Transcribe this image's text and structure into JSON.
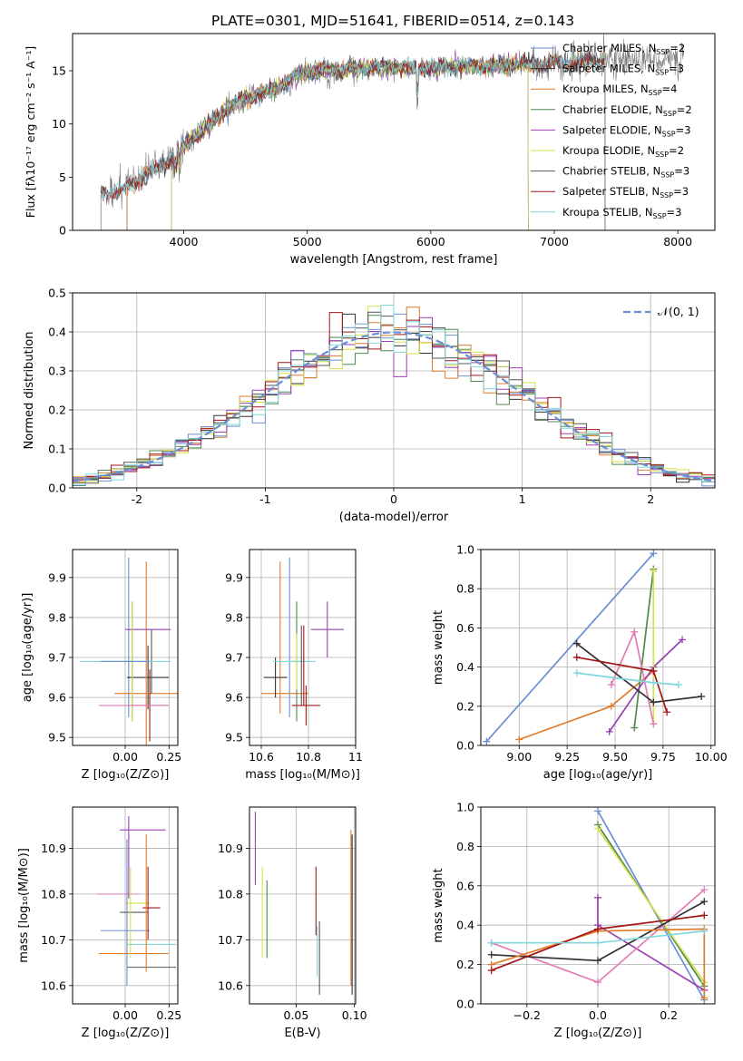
{
  "title": "PLATE=0301, MJD=51641, FIBERID=0514, z=0.143",
  "colors": {
    "Chabrier MILES": "#6a8fd6",
    "Salpeter MILES": "#333333",
    "Kroupa MILES": "#e07b2a",
    "Chabrier ELODIE": "#4f8a4f",
    "Salpeter ELODIE": "#9b3fb5",
    "Kroupa ELODIE": "#d6e04a",
    "Chabrier STELIB": "#555555",
    "Salpeter STELIB": "#a01818",
    "Kroupa STELIB": "#7fd6dc",
    "pink": "#e37db5",
    "gauss": "#6a8fd6"
  },
  "chart_data": [
    {
      "type": "line",
      "title": "PLATE=0301, MJD=51641, FIBERID=0514, z=0.143",
      "xlabel": "wavelength [Angstrom, rest frame]",
      "ylabel": "Flux [fλ10⁻¹⁷ erg cm⁻² s⁻¹ A⁻¹]",
      "xlim": [
        3100,
        8300
      ],
      "ylim": [
        0,
        18.5
      ],
      "xticks": [
        4000,
        5000,
        6000,
        7000,
        8000
      ],
      "yticks": [
        0,
        5,
        10,
        15
      ],
      "grid": false,
      "legend": "top-right",
      "legend_entries": [
        {
          "name": "Chabrier MILES, N",
          "sub": "SSP",
          "tail": "=2",
          "color": "Chabrier MILES"
        },
        {
          "name": "Salpeter MILES, N",
          "sub": "SSP",
          "tail": "=3",
          "color": "Salpeter MILES"
        },
        {
          "name": "Kroupa MILES, N",
          "sub": "SSP",
          "tail": "=4",
          "color": "Kroupa MILES"
        },
        {
          "name": "Chabrier ELODIE, N",
          "sub": "SSP",
          "tail": "=2",
          "color": "Chabrier ELODIE"
        },
        {
          "name": "Salpeter ELODIE, N",
          "sub": "SSP",
          "tail": "=3",
          "color": "Salpeter ELODIE"
        },
        {
          "name": "Kroupa ELODIE, N",
          "sub": "SSP",
          "tail": "=2",
          "color": "Kroupa ELODIE"
        },
        {
          "name": "Chabrier STELIB, N",
          "sub": "SSP",
          "tail": "=3",
          "color": "Chabrier STELIB"
        },
        {
          "name": "Salpeter STELIB, N",
          "sub": "SSP",
          "tail": "=3",
          "color": "Salpeter STELIB"
        },
        {
          "name": "Kroupa STELIB, N",
          "sub": "SSP",
          "tail": "=3",
          "color": "Kroupa STELIB"
        }
      ],
      "spectrum_shape": {
        "x": [
          3330,
          3500,
          3600,
          3700,
          3800,
          3900,
          4000,
          4100,
          4200,
          4300,
          4400,
          4500,
          4600,
          4700,
          4800,
          4900,
          5000,
          5200,
          5400,
          5600,
          5800,
          6000,
          6200,
          6400,
          6600,
          6800,
          7000,
          7200,
          7400,
          7500
        ],
        "y": [
          3.6,
          3.7,
          4.6,
          5.2,
          6.0,
          6.9,
          7.9,
          8.9,
          9.9,
          10.9,
          11.9,
          12.4,
          12.8,
          13.1,
          13.6,
          14.5,
          14.9,
          15.1,
          15.2,
          15.3,
          15.3,
          15.3,
          15.4,
          15.4,
          15.5,
          15.6,
          15.7,
          15.8,
          16.0,
          16.1
        ]
      },
      "model_ranges": [
        {
          "model": "Chabrier MILES",
          "xmin": 3540,
          "xmax": 7410
        },
        {
          "model": "Salpeter MILES",
          "xmin": 3540,
          "xmax": 7410
        },
        {
          "model": "Kroupa MILES",
          "xmin": 3540,
          "xmax": 7410
        },
        {
          "model": "Chabrier ELODIE",
          "xmin": 3900,
          "xmax": 6790
        },
        {
          "model": "Salpeter ELODIE",
          "xmin": 3900,
          "xmax": 6790
        },
        {
          "model": "Kroupa ELODIE",
          "xmin": 3900,
          "xmax": 6790
        },
        {
          "model": "Chabrier STELIB",
          "xmin": 3330,
          "xmax": 7410
        },
        {
          "model": "Salpeter STELIB",
          "xmin": 3330,
          "xmax": 7410
        },
        {
          "model": "Kroupa STELIB",
          "xmin": 3330,
          "xmax": 7410
        }
      ],
      "data_range": [
        3330,
        8050
      ]
    },
    {
      "type": "line",
      "xlabel": "(data-model)/error",
      "ylabel": "Normed distribution",
      "xlim": [
        -2.5,
        2.5
      ],
      "ylim": [
        0,
        0.5
      ],
      "xticks": [
        -2,
        -1,
        0,
        1,
        2
      ],
      "yticks": [
        0.0,
        0.1,
        0.2,
        0.3,
        0.4,
        0.5
      ],
      "grid": true,
      "legend": "top-right",
      "legend_entry": "𝒩(0, 1)",
      "bin_width": 0.1
    },
    {
      "type": "scatter",
      "xlabel": "Z [log₁₀(Z/Z⊙)]",
      "ylabel": "age  [log₁₀(age/yr)]",
      "xlim": [
        -0.3,
        0.3
      ],
      "ylim": [
        9.48,
        9.97
      ],
      "xticks": [
        0.0,
        0.25
      ],
      "xticklabels": [
        "0.00",
        "0.25"
      ],
      "yticks": [
        9.5,
        9.6,
        9.7,
        9.8,
        9.9
      ],
      "grid": true
    },
    {
      "type": "scatter",
      "xlabel": "mass [log₁₀(M/M⊙)]",
      "xlim": [
        10.55,
        11.0
      ],
      "ylim": [
        9.48,
        9.97
      ],
      "xticks": [
        10.6,
        10.8,
        11.0
      ],
      "yticks": [
        9.5,
        9.6,
        9.7,
        9.8,
        9.9
      ],
      "grid": true
    },
    {
      "type": "line",
      "xlabel": "age  [log₁₀(age/yr)]",
      "ylabel": "mass weight",
      "xlim": [
        8.8,
        10.02
      ],
      "ylim": [
        0,
        1.0
      ],
      "xticks": [
        9.0,
        9.25,
        9.5,
        9.75,
        10.0
      ],
      "xticklabels": [
        "9.00",
        "9.25",
        "9.50",
        "9.75",
        "10.00"
      ],
      "yticks": [
        0.0,
        0.2,
        0.4,
        0.6,
        0.8,
        1.0
      ],
      "grid": true,
      "series": [
        {
          "color": "Chabrier MILES",
          "x": [
            8.83,
            9.7
          ],
          "y": [
            0.02,
            0.98
          ]
        },
        {
          "color": "Kroupa MILES",
          "x": [
            9.0,
            9.48,
            9.7
          ],
          "y": [
            0.03,
            0.2,
            0.38
          ]
        },
        {
          "color": "Chabrier ELODIE",
          "x": [
            9.6,
            9.7
          ],
          "y": [
            0.09,
            0.9
          ]
        },
        {
          "color": "Salpeter ELODIE",
          "x": [
            9.47,
            9.7,
            9.85
          ],
          "y": [
            0.07,
            0.4,
            0.54
          ]
        },
        {
          "color": "Kroupa ELODIE",
          "x": [
            9.7,
            9.7
          ],
          "y": [
            0.11,
            0.89
          ]
        },
        {
          "color": "pink",
          "x": [
            9.48,
            9.6,
            9.7
          ],
          "y": [
            0.31,
            0.58,
            0.11
          ]
        },
        {
          "color": "Salpeter MILES",
          "x": [
            9.3,
            9.7,
            9.95
          ],
          "y": [
            0.52,
            0.22,
            0.25
          ]
        },
        {
          "color": "Salpeter STELIB",
          "x": [
            9.3,
            9.7,
            9.77
          ],
          "y": [
            0.45,
            0.38,
            0.17
          ]
        },
        {
          "color": "Kroupa STELIB",
          "x": [
            9.3,
            9.7,
            9.83
          ],
          "y": [
            0.37,
            0.32,
            0.31
          ]
        }
      ]
    },
    {
      "type": "scatter",
      "xlabel": "Z [log₁₀(Z/Z⊙)]",
      "ylabel": "mass [log₁₀(M/M⊙)]",
      "xlim": [
        -0.3,
        0.3
      ],
      "ylim": [
        10.56,
        10.99
      ],
      "xticks": [
        0.0,
        0.25
      ],
      "xticklabels": [
        "0.00",
        "0.25"
      ],
      "yticks": [
        10.6,
        10.7,
        10.8,
        10.9
      ],
      "grid": true
    },
    {
      "type": "scatter",
      "xlabel": "E(B-V)",
      "xlim": [
        0.01,
        0.101
      ],
      "ylim": [
        10.56,
        10.99
      ],
      "xticks": [
        0.05,
        0.1
      ],
      "xticklabels": [
        "0.05",
        "0.10"
      ],
      "yticks": [
        10.6,
        10.7,
        10.8,
        10.9
      ],
      "grid": true,
      "bars": [
        {
          "color": "Salpeter ELODIE",
          "x": 0.015,
          "ymin": 10.82,
          "ymax": 10.98
        },
        {
          "color": "Kroupa ELODIE",
          "x": 0.021,
          "ymin": 10.66,
          "ymax": 10.86
        },
        {
          "color": "Chabrier ELODIE",
          "x": 0.025,
          "ymin": 10.66,
          "ymax": 10.83
        },
        {
          "color": "Salpeter STELIB",
          "x": 0.067,
          "ymin": 10.71,
          "ymax": 10.86
        },
        {
          "color": "Kroupa STELIB",
          "x": 0.068,
          "ymin": 10.62,
          "ymax": 10.73
        },
        {
          "color": "Chabrier STELIB",
          "x": 0.07,
          "ymin": 10.58,
          "ymax": 10.74
        },
        {
          "color": "Kroupa MILES",
          "x": 0.097,
          "ymin": 10.6,
          "ymax": 10.94
        },
        {
          "color": "Salpeter MILES",
          "x": 0.098,
          "ymin": 10.58,
          "ymax": 10.93
        }
      ]
    },
    {
      "type": "line",
      "xlabel": "Z [log₁₀(Z/Z⊙)]",
      "ylabel": "mass weight",
      "xlim": [
        -0.33,
        0.33
      ],
      "ylim": [
        0,
        1.0
      ],
      "xticks": [
        -0.2,
        0.0,
        0.2
      ],
      "xticklabels": [
        "−0.2",
        "0.0",
        "0.2"
      ],
      "yticks": [
        0.0,
        0.2,
        0.4,
        0.6,
        0.8,
        1.0
      ],
      "grid": true,
      "series": [
        {
          "color": "Chabrier MILES",
          "x": [
            0.0,
            0.3
          ],
          "y": [
            0.98,
            0.02
          ]
        },
        {
          "color": "Chabrier ELODIE",
          "x": [
            0.0,
            0.3
          ],
          "y": [
            0.91,
            0.09
          ]
        },
        {
          "color": "Kroupa ELODIE",
          "x": [
            0.0,
            0.3
          ],
          "y": [
            0.89,
            0.11
          ]
        },
        {
          "color": "Salpeter ELODIE",
          "x": [
            0.0,
            0.0,
            0.3
          ],
          "y": [
            0.54,
            0.4,
            0.07
          ]
        },
        {
          "color": "pink",
          "x": [
            -0.3,
            0.0,
            0.3
          ],
          "y": [
            0.31,
            0.11,
            0.58
          ]
        },
        {
          "color": "Salpeter MILES",
          "x": [
            -0.3,
            0.0,
            0.3
          ],
          "y": [
            0.25,
            0.22,
            0.52
          ]
        },
        {
          "color": "Kroupa MILES",
          "x": [
            -0.3,
            0.0,
            0.3,
            0.3
          ],
          "y": [
            0.2,
            0.37,
            0.38,
            0.03
          ]
        },
        {
          "color": "Salpeter STELIB",
          "x": [
            -0.3,
            0.0,
            0.3
          ],
          "y": [
            0.17,
            0.38,
            0.45
          ]
        },
        {
          "color": "Kroupa STELIB",
          "x": [
            -0.3,
            0.0,
            0.3
          ],
          "y": [
            0.31,
            0.31,
            0.37
          ]
        }
      ]
    }
  ]
}
